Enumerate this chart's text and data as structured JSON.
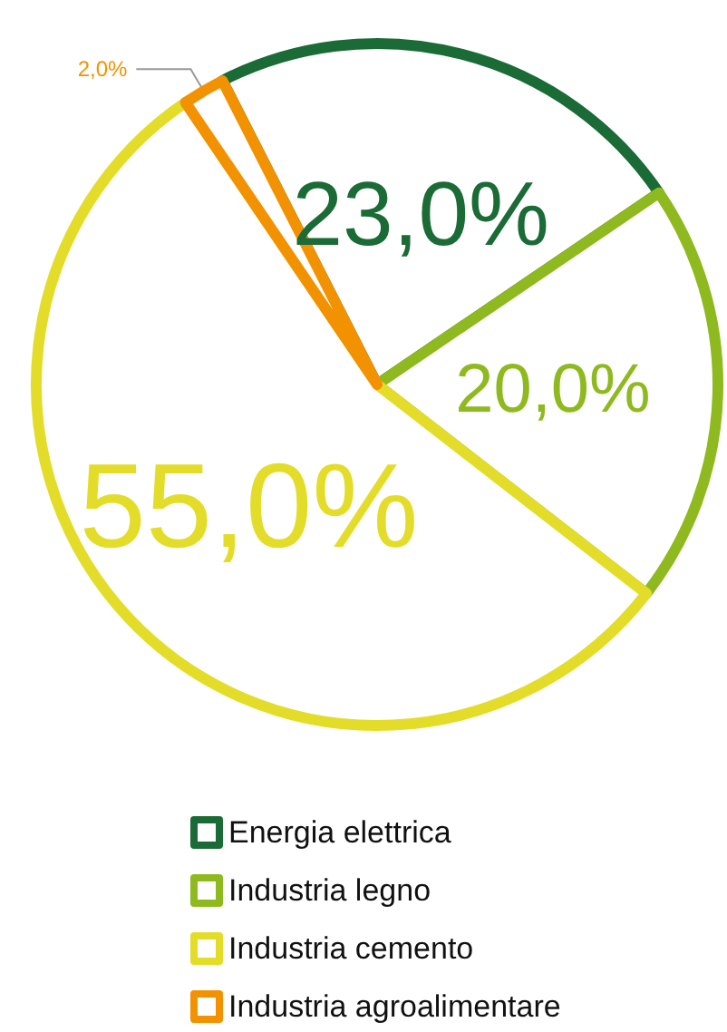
{
  "chart_data": {
    "type": "pie",
    "categories": [
      "Energia elettrica",
      "Industria legno",
      "Industria cemento",
      "Industria agroalimentare"
    ],
    "values": [
      23,
      20,
      55,
      2
    ],
    "colors": [
      "#1a6b35",
      "#8fba1f",
      "#e3dd2a",
      "#f39200"
    ],
    "value_labels": [
      "23,0%",
      "20,0%",
      "55,0%",
      "2,0%"
    ],
    "legend": "bottom"
  }
}
